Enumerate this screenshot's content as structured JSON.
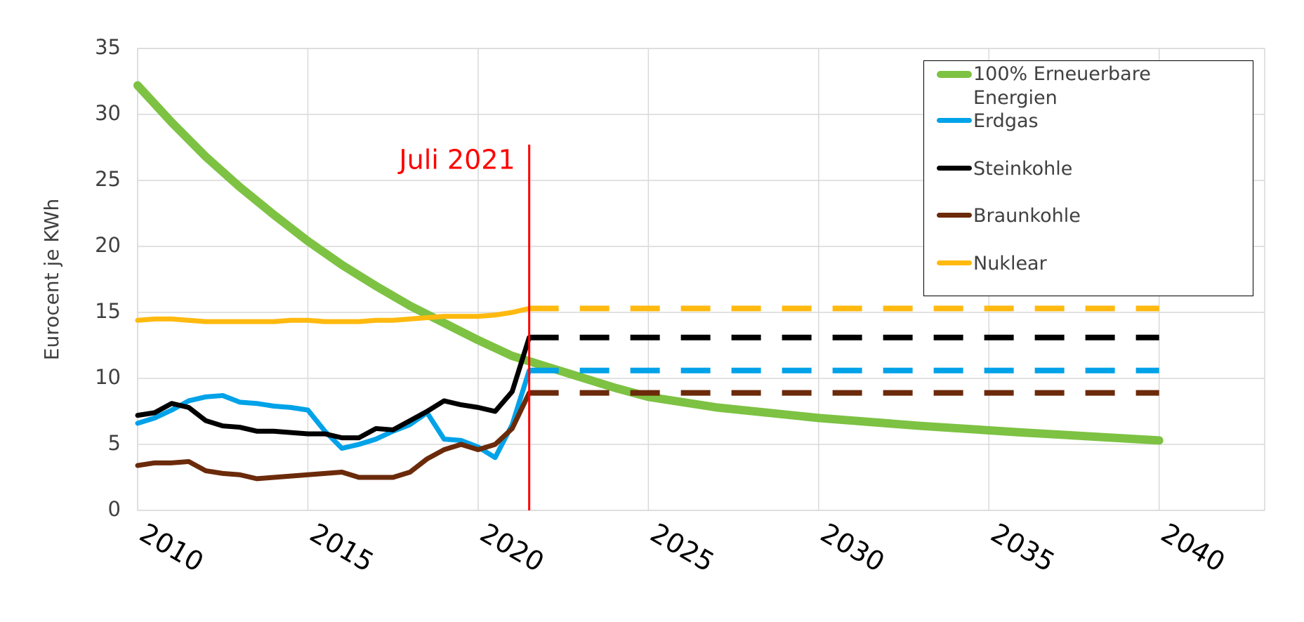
{
  "chart_data": {
    "type": "line",
    "y_label": "Eurocent je KWh",
    "xlim": [
      2010,
      2043.1
    ],
    "ylim": [
      0,
      35
    ],
    "xticks": [
      2010,
      2015,
      2020,
      2025,
      2030,
      2035,
      2040
    ],
    "yticks": [
      0,
      5,
      10,
      15,
      20,
      25,
      30,
      35
    ],
    "grid": true,
    "legend": "top-right",
    "annotation": {
      "text": "Juli 2021",
      "x": 2021.5,
      "color": "#ff0000"
    },
    "series": [
      {
        "name": "100% Erneuerbare Energien",
        "color": "#7dc242",
        "width": 12,
        "x": [
          2010,
          2011,
          2012,
          2013,
          2014,
          2015,
          2016,
          2017,
          2018,
          2019,
          2020,
          2021,
          2022,
          2023,
          2024,
          2025,
          2027,
          2030,
          2033,
          2036,
          2040
        ],
        "values": [
          32.2,
          29.4,
          26.8,
          24.5,
          22.4,
          20.4,
          18.6,
          17.0,
          15.5,
          14.2,
          12.9,
          11.7,
          10.9,
          10.1,
          9.3,
          8.6,
          7.8,
          7.0,
          6.4,
          5.9,
          5.3
        ]
      },
      {
        "name": "Erdgas",
        "color": "#00a2e8",
        "width": 7,
        "x": [
          2010,
          2010.5,
          2011,
          2011.5,
          2012,
          2012.5,
          2013,
          2013.5,
          2014,
          2014.5,
          2015,
          2015.5,
          2016,
          2016.5,
          2017,
          2017.5,
          2018,
          2018.5,
          2019,
          2019.5,
          2020,
          2020.5,
          2021,
          2021.5
        ],
        "values": [
          6.6,
          7.0,
          7.6,
          8.3,
          8.6,
          8.7,
          8.2,
          8.1,
          7.9,
          7.8,
          7.6,
          6.0,
          4.7,
          5.0,
          5.4,
          6.0,
          6.5,
          7.4,
          5.4,
          5.3,
          4.8,
          4.0,
          6.5,
          10.6
        ]
      },
      {
        "name": "Steinkohle",
        "color": "#000000",
        "width": 7,
        "x": [
          2010,
          2010.5,
          2011,
          2011.5,
          2012,
          2012.5,
          2013,
          2013.5,
          2014,
          2014.5,
          2015,
          2015.5,
          2016,
          2016.5,
          2017,
          2017.5,
          2018,
          2018.5,
          2019,
          2019.5,
          2020,
          2020.5,
          2021,
          2021.5
        ],
        "values": [
          7.2,
          7.4,
          8.1,
          7.8,
          6.8,
          6.4,
          6.3,
          6.0,
          6.0,
          5.9,
          5.8,
          5.8,
          5.5,
          5.5,
          6.2,
          6.1,
          6.8,
          7.5,
          8.3,
          8.0,
          7.8,
          7.5,
          9.0,
          13.1
        ]
      },
      {
        "name": "Braunkohle",
        "color": "#6b2a0a",
        "width": 7,
        "x": [
          2010,
          2010.5,
          2011,
          2011.5,
          2012,
          2012.5,
          2013,
          2013.5,
          2014,
          2014.5,
          2015,
          2015.5,
          2016,
          2016.5,
          2017,
          2017.5,
          2018,
          2018.5,
          2019,
          2019.5,
          2020,
          2020.5,
          2021,
          2021.5
        ],
        "values": [
          3.4,
          3.6,
          3.6,
          3.7,
          3.0,
          2.8,
          2.7,
          2.4,
          2.5,
          2.6,
          2.7,
          2.8,
          2.9,
          2.5,
          2.5,
          2.5,
          2.9,
          3.9,
          4.6,
          5.0,
          4.6,
          5.0,
          6.2,
          8.9
        ]
      },
      {
        "name": "Nuklear",
        "color": "#ffb90f",
        "width": 7,
        "x": [
          2010,
          2010.5,
          2011,
          2011.5,
          2012,
          2012.5,
          2013,
          2013.5,
          2014,
          2014.5,
          2015,
          2015.5,
          2016,
          2016.5,
          2017,
          2017.5,
          2018,
          2018.5,
          2019,
          2019.5,
          2020,
          2020.5,
          2021,
          2021.5
        ],
        "values": [
          14.4,
          14.5,
          14.5,
          14.4,
          14.3,
          14.3,
          14.3,
          14.3,
          14.3,
          14.4,
          14.4,
          14.3,
          14.3,
          14.3,
          14.4,
          14.4,
          14.5,
          14.6,
          14.7,
          14.7,
          14.7,
          14.8,
          15.0,
          15.3
        ]
      },
      {
        "color": "#ffb90f",
        "width": 8,
        "dashed": true,
        "x": [
          2021.5,
          2040
        ],
        "values": [
          15.3,
          15.3
        ]
      },
      {
        "color": "#000000",
        "width": 8,
        "dashed": true,
        "x": [
          2021.5,
          2040
        ],
        "values": [
          13.1,
          13.1
        ]
      },
      {
        "color": "#00a2e8",
        "width": 8,
        "dashed": true,
        "x": [
          2021.5,
          2040
        ],
        "values": [
          10.6,
          10.6
        ]
      },
      {
        "color": "#6b2a0a",
        "width": 8,
        "dashed": true,
        "x": [
          2021.5,
          2040
        ],
        "values": [
          8.9,
          8.9
        ]
      }
    ]
  }
}
